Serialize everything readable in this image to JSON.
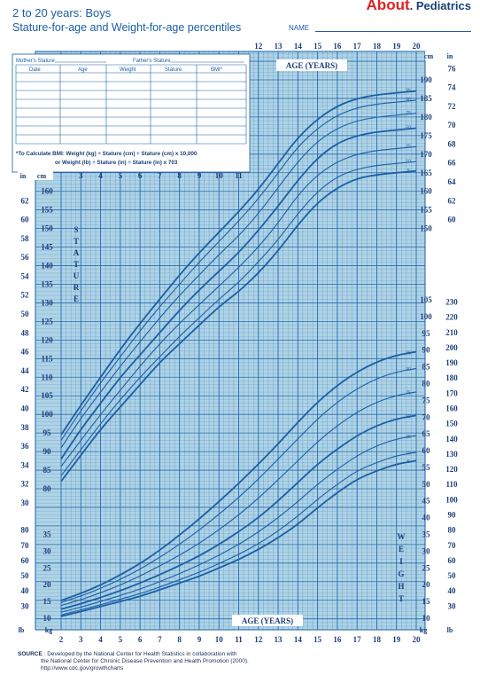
{
  "header": {
    "title": "2 to 20 years: Boys",
    "subtitle": "Stature-for-age and Weight-for-age percentiles",
    "name_label": "NAME",
    "logo_main": "About",
    "logo_sub": ". Pediatrics"
  },
  "record_table": {
    "mothers_stature": "Mother's Stature",
    "fathers_stature": "Father's Stature",
    "columns": [
      "Date",
      "Age",
      "Weight",
      "Stature",
      "BMI*"
    ],
    "bmi_note_1": "*To Calculate BMI: Weight (kg) ÷ Stature (cm) ÷ Stature (cm) x 10,000",
    "bmi_note_2": "or Weight (lb) ÷ Stature (in) ÷ Stature (in) x 703"
  },
  "labels": {
    "age_years": "AGE (YEARS)",
    "stature": [
      "S",
      "T",
      "A",
      "T",
      "U",
      "R",
      "E"
    ],
    "weight": [
      "W",
      "E",
      "I",
      "G",
      "H",
      "T"
    ],
    "in": "in",
    "cm": "cm",
    "kg": "kg",
    "lb": "lb"
  },
  "footer": {
    "source_label": "SOURCE",
    "line1": ": Developed by the National Center for Health Statistics in collaboration with",
    "line2": "the National Center for Chronic Disease Prevention and Health Promotion (2000).",
    "line3": "http://www.cdc.gov/growthcharts"
  },
  "colors": {
    "grid_bg": "#aed3e6",
    "line": "#1b5fa6",
    "panel": "#ffffff"
  },
  "chart_data": [
    {
      "type": "line",
      "title": "Stature-for-age percentiles",
      "xlabel": "AGE (YEARS)",
      "ylabel": "cm",
      "x": [
        2,
        3,
        4,
        5,
        6,
        7,
        8,
        9,
        10,
        11,
        12,
        13,
        14,
        15,
        16,
        17,
        18,
        19,
        20
      ],
      "xlim": [
        2,
        20
      ],
      "ylim": [
        80,
        200
      ],
      "series": [
        {
          "name": "5",
          "values": [
            82,
            89,
            96,
            102,
            108,
            114,
            119,
            124,
            129,
            133,
            138,
            144,
            151,
            157,
            161,
            163.5,
            164.5,
            165,
            165.5
          ]
        },
        {
          "name": "10",
          "values": [
            83.5,
            90.5,
            97.5,
            104,
            110,
            115.5,
            121,
            126,
            131,
            135.5,
            141,
            147,
            154,
            160,
            164,
            166,
            167,
            167.5,
            168
          ]
        },
        {
          "name": "25",
          "values": [
            86,
            93,
            100,
            106.5,
            113,
            119,
            124.5,
            129.5,
            134.5,
            139.5,
            145,
            151.5,
            159,
            164.5,
            168,
            170,
            171,
            171.5,
            172
          ]
        },
        {
          "name": "50",
          "values": [
            88,
            96,
            103,
            110,
            116,
            122,
            128,
            133.5,
            138.5,
            143.5,
            149.5,
            156,
            163,
            169,
            173,
            175,
            176,
            176.5,
            177
          ]
        },
        {
          "name": "75",
          "values": [
            91,
            99,
            106,
            113,
            119.5,
            126,
            132,
            137.5,
            143,
            148,
            154,
            161,
            168,
            173.5,
            177,
            179,
            180,
            180.5,
            181
          ]
        },
        {
          "name": "90",
          "values": [
            93,
            101,
            108.5,
            115.5,
            122.5,
            129,
            135,
            141,
            146.5,
            152,
            158,
            165,
            172,
            177,
            180.5,
            182.5,
            183.5,
            184,
            184.5
          ]
        },
        {
          "name": "95",
          "values": [
            94.5,
            102.5,
            110,
            117.5,
            124.5,
            131,
            137.5,
            143.5,
            149,
            154.5,
            160.5,
            167.5,
            174.5,
            179.5,
            183,
            185,
            186,
            186.5,
            187
          ]
        }
      ]
    },
    {
      "type": "line",
      "title": "Weight-for-age percentiles",
      "xlabel": "AGE (YEARS)",
      "ylabel": "kg",
      "x": [
        2,
        3,
        4,
        5,
        6,
        7,
        8,
        9,
        10,
        11,
        12,
        13,
        14,
        15,
        16,
        17,
        18,
        19,
        20
      ],
      "xlim": [
        2,
        20
      ],
      "ylim": [
        10,
        105
      ],
      "series": [
        {
          "name": "5",
          "values": [
            10.6,
            12,
            13.5,
            15,
            16.5,
            18.5,
            20.5,
            22.5,
            25,
            27.5,
            30.5,
            34,
            38,
            43,
            47.5,
            51.5,
            54,
            56,
            57
          ]
        },
        {
          "name": "10",
          "values": [
            11,
            12.5,
            14,
            15.7,
            17.3,
            19.3,
            21.5,
            23.7,
            26.3,
            29,
            32.2,
            36,
            40.5,
            45.5,
            50,
            54,
            56.5,
            58.5,
            59.5
          ]
        },
        {
          "name": "25",
          "values": [
            11.8,
            13.3,
            15,
            16.8,
            18.7,
            20.9,
            23.3,
            25.9,
            28.8,
            32,
            35.7,
            40,
            44.8,
            50,
            54.5,
            58.5,
            61.5,
            63.5,
            64.5
          ]
        },
        {
          "name": "50",
          "values": [
            12.7,
            14.3,
            16.2,
            18.2,
            20.5,
            23,
            25.7,
            28.6,
            32,
            35.8,
            40,
            45,
            50.5,
            56,
            60.5,
            64.5,
            67.5,
            69.5,
            70.5
          ]
        },
        {
          "name": "75",
          "values": [
            13.8,
            15.5,
            17.6,
            19.9,
            22.6,
            25.6,
            28.8,
            32.3,
            36.4,
            40.8,
            45.8,
            51.3,
            57,
            62.7,
            67.5,
            71.5,
            74.5,
            76.5,
            77.5
          ]
        },
        {
          "name": "90",
          "values": [
            14.7,
            16.6,
            18.9,
            21.6,
            24.6,
            28.2,
            32,
            36.3,
            41,
            46,
            51.5,
            57.5,
            63.5,
            69.5,
            74.5,
            78.5,
            81.5,
            83.5,
            84.5
          ]
        },
        {
          "name": "95",
          "values": [
            15.3,
            17.4,
            19.9,
            22.9,
            26.3,
            30.3,
            34.8,
            39.6,
            44.8,
            50.2,
            56,
            62,
            68.5,
            74.5,
            79.5,
            83.5,
            86.5,
            88.5,
            89.5
          ]
        }
      ]
    }
  ]
}
